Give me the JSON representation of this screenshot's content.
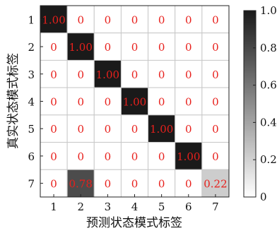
{
  "chart_data": {
    "type": "heatmap",
    "xlabel": "预测状态模式标签",
    "ylabel": "真实状态模式标签",
    "x_categories": [
      "1",
      "2",
      "3",
      "4",
      "5",
      "6",
      "7"
    ],
    "y_categories": [
      "1",
      "2",
      "3",
      "4",
      "5",
      "6",
      "7"
    ],
    "cell_labels": [
      [
        "1.00",
        "0",
        "0",
        "0",
        "0",
        "0",
        "0"
      ],
      [
        "0",
        "1.00",
        "0",
        "0",
        "0",
        "0",
        "0"
      ],
      [
        "0",
        "0",
        "1.00",
        "0",
        "0",
        "0",
        "0"
      ],
      [
        "0",
        "0",
        "0",
        "1.00",
        "0",
        "0",
        "0"
      ],
      [
        "0",
        "0",
        "0",
        "0",
        "1.00",
        "0",
        "0"
      ],
      [
        "0",
        "0",
        "0",
        "0",
        "0",
        "1.00",
        "0"
      ],
      [
        "0",
        "0.78",
        "0",
        "0",
        "0",
        "0",
        "0.22"
      ]
    ],
    "values": [
      [
        1.0,
        0,
        0,
        0,
        0,
        0,
        0
      ],
      [
        0,
        1.0,
        0,
        0,
        0,
        0,
        0
      ],
      [
        0,
        0,
        1.0,
        0,
        0,
        0,
        0
      ],
      [
        0,
        0,
        0,
        1.0,
        0,
        0,
        0
      ],
      [
        0,
        0,
        0,
        0,
        1.0,
        0,
        0
      ],
      [
        0,
        0,
        0,
        0,
        0,
        1.0,
        0
      ],
      [
        0,
        0.78,
        0,
        0,
        0,
        0,
        0.22
      ]
    ],
    "colorbar": {
      "range": [
        0,
        1.0
      ],
      "ticks": [
        "0",
        "0.2",
        "0.4",
        "0.6",
        "0.8",
        "1.0"
      ],
      "low_color": "#ffffff",
      "high_color": "#1a1a1a"
    },
    "label_color": "#e8201c",
    "grid_line_color": "#c8c8c8"
  }
}
